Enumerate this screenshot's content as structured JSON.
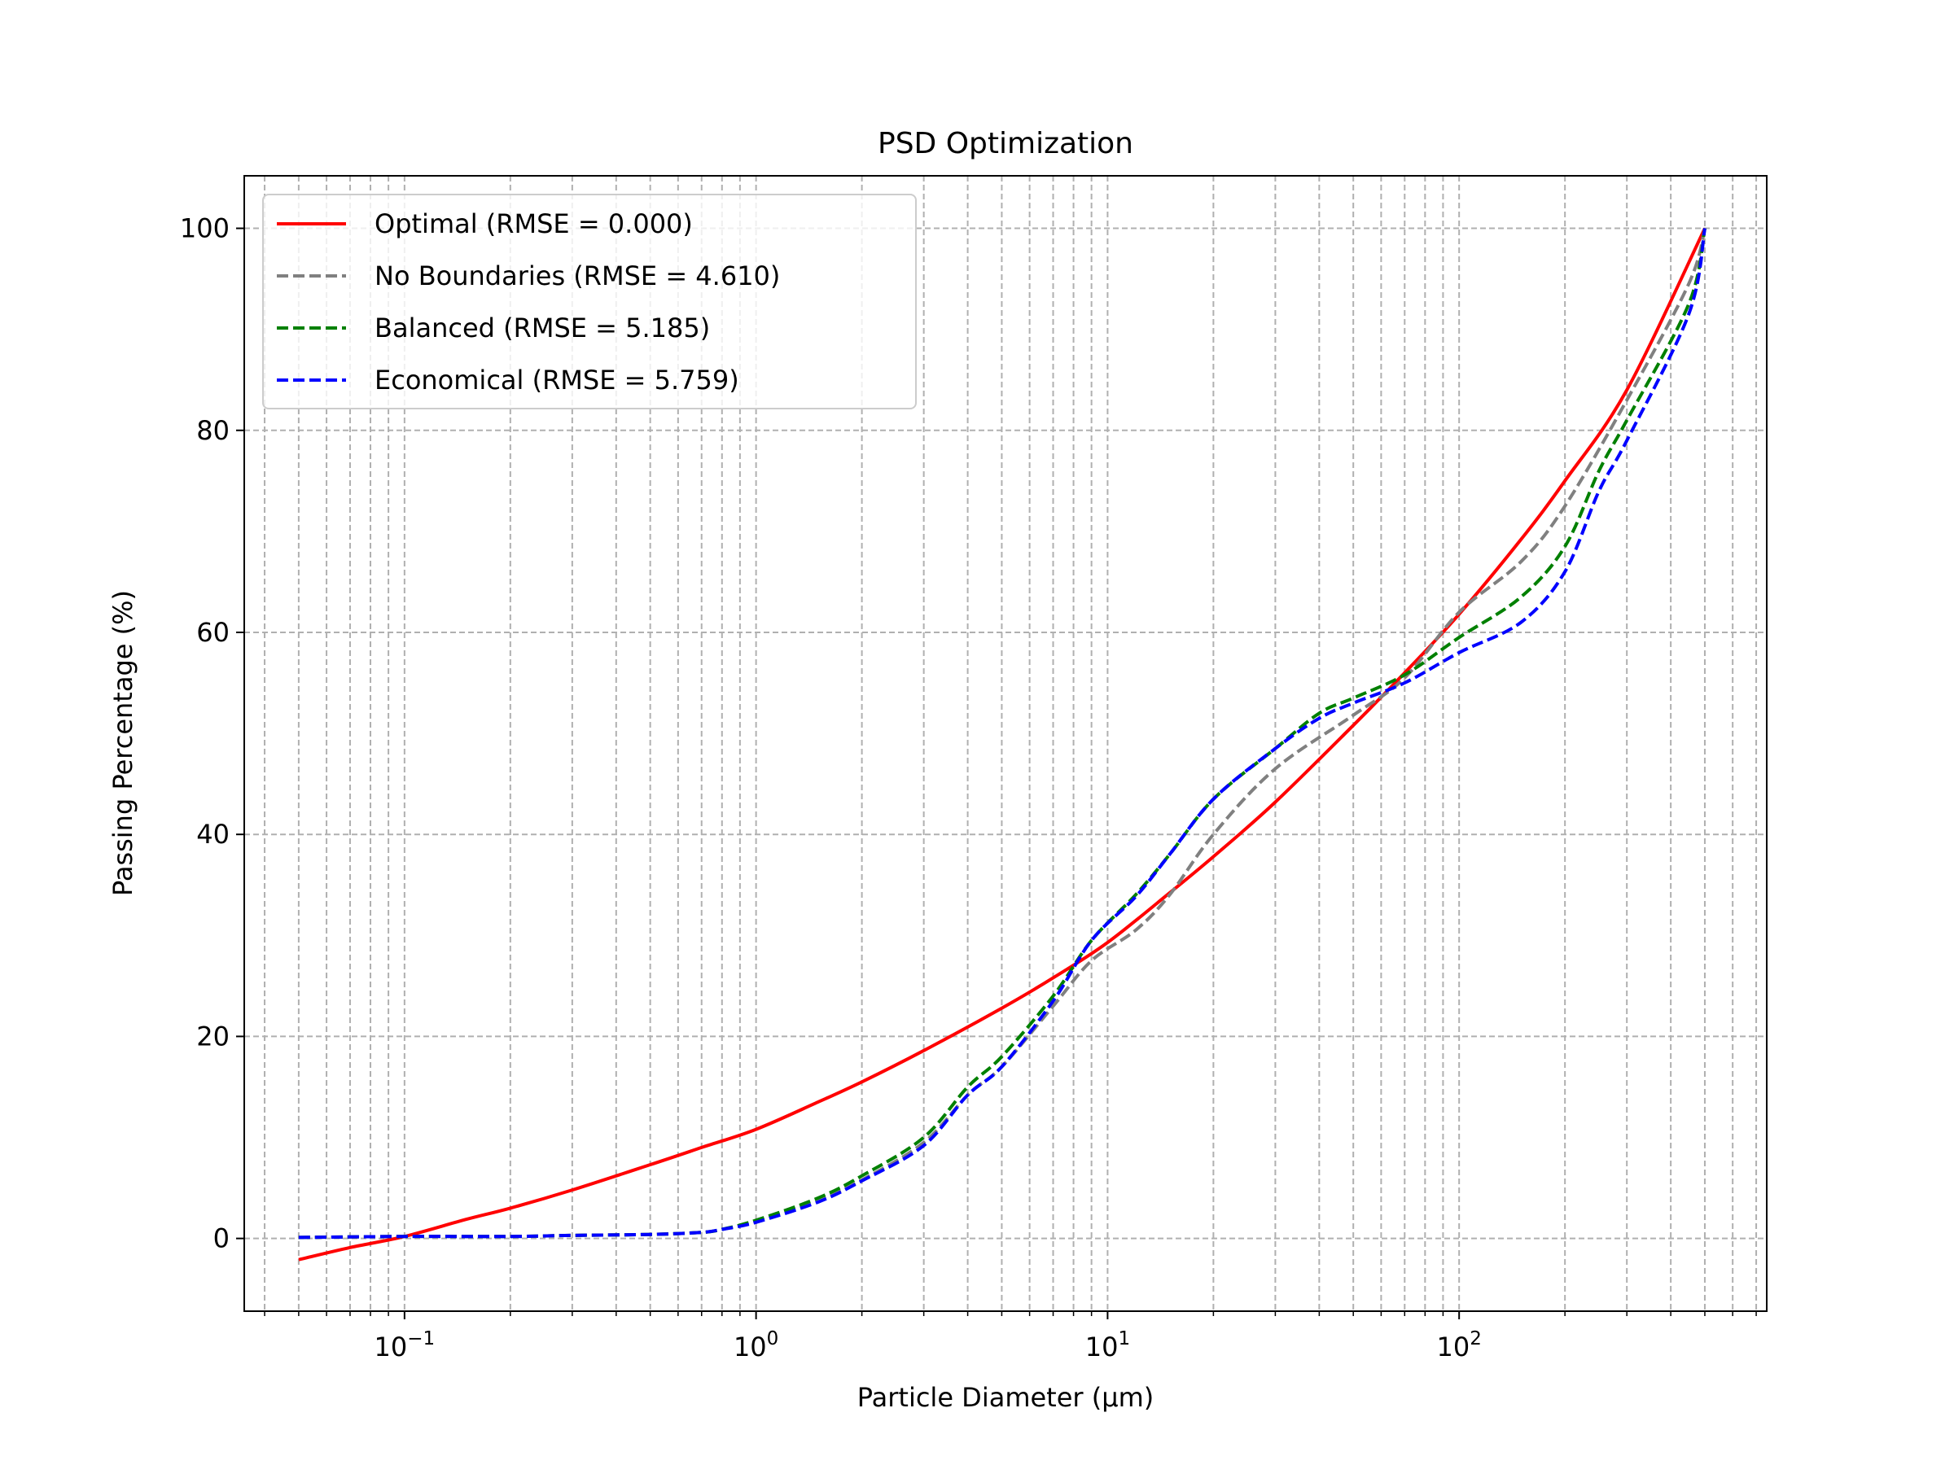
{
  "chart_data": {
    "type": "line",
    "title": "PSD Optimization",
    "xlabel": "Particle Diameter (μm)",
    "ylabel": "Passing Percentage (%)",
    "xscale": "log",
    "xlim": [
      0.035,
      750
    ],
    "ylim": [
      -7.2,
      105.2
    ],
    "yticks": [
      0,
      20,
      40,
      60,
      80,
      100
    ],
    "xticks": [
      {
        "value": 0.1,
        "mantissa": "10",
        "exp": "−1"
      },
      {
        "value": 1,
        "mantissa": "10",
        "exp": "0"
      },
      {
        "value": 10,
        "mantissa": "10",
        "exp": "1"
      },
      {
        "value": 100,
        "mantissa": "10",
        "exp": "2"
      }
    ],
    "grid": true,
    "legend_position": "upper-left",
    "series": [
      {
        "name": "Optimal (RMSE = 0.000)",
        "color": "#ff0000",
        "style": "solid",
        "x": [
          0.05,
          0.07,
          0.1,
          0.15,
          0.2,
          0.3,
          0.5,
          0.7,
          1,
          1.5,
          2,
          3,
          5,
          7,
          10,
          15,
          20,
          30,
          50,
          70,
          100,
          150,
          200,
          300,
          500
        ],
        "y": [
          -2.1,
          -0.9,
          0.2,
          1.9,
          3.0,
          4.8,
          7.3,
          9.0,
          10.8,
          13.5,
          15.5,
          18.6,
          22.8,
          25.8,
          29.3,
          34.2,
          37.8,
          43.2,
          50.8,
          56.0,
          61.8,
          69.2,
          75.0,
          84.0,
          100.0
        ]
      },
      {
        "name": "No Boundaries (RMSE = 4.610)",
        "color": "#808080",
        "style": "dashed",
        "x": [
          0.05,
          0.1,
          0.2,
          0.3,
          0.5,
          0.7,
          0.8,
          1,
          1.5,
          2,
          3,
          4,
          5,
          7,
          9,
          12,
          15,
          20,
          30,
          50,
          70,
          100,
          150,
          200,
          300,
          450,
          500
        ],
        "y": [
          0.1,
          0.2,
          0.2,
          0.3,
          0.4,
          0.6,
          0.9,
          1.7,
          3.8,
          5.8,
          9.5,
          14.2,
          17.0,
          23.0,
          27.5,
          30.5,
          34.0,
          40.0,
          46.5,
          51.8,
          55.5,
          62.0,
          67.0,
          72.5,
          83.0,
          94.5,
          100.0
        ]
      },
      {
        "name": "Balanced (RMSE = 5.185)",
        "color": "#008000",
        "style": "dashed",
        "x": [
          0.05,
          0.1,
          0.2,
          0.3,
          0.5,
          0.7,
          0.8,
          1,
          1.5,
          2,
          3,
          4,
          5,
          7,
          9,
          12,
          15,
          20,
          30,
          40,
          50,
          70,
          100,
          150,
          200,
          250,
          300,
          450,
          500
        ],
        "y": [
          0.1,
          0.2,
          0.2,
          0.3,
          0.4,
          0.6,
          0.9,
          1.8,
          4.0,
          6.2,
          10.0,
          15.0,
          18.0,
          24.0,
          29.5,
          34.0,
          38.0,
          43.5,
          48.5,
          52.0,
          53.5,
          55.8,
          59.5,
          63.5,
          68.5,
          76.0,
          81.0,
          92.5,
          100.0
        ]
      },
      {
        "name": "Economical (RMSE = 5.759)",
        "color": "#0000ff",
        "style": "dashed",
        "x": [
          0.05,
          0.1,
          0.2,
          0.3,
          0.5,
          0.7,
          0.8,
          1,
          1.5,
          2,
          3,
          4,
          5,
          7,
          9,
          12,
          15,
          20,
          30,
          40,
          50,
          70,
          100,
          150,
          200,
          250,
          300,
          450,
          500
        ],
        "y": [
          0.1,
          0.2,
          0.2,
          0.3,
          0.4,
          0.6,
          0.9,
          1.6,
          3.6,
          5.7,
          9.2,
          14.2,
          17.0,
          23.5,
          29.5,
          33.8,
          38.0,
          43.5,
          48.5,
          51.5,
          53.0,
          55.0,
          58.0,
          61.0,
          66.0,
          74.0,
          79.0,
          91.5,
          100.0
        ]
      }
    ]
  }
}
